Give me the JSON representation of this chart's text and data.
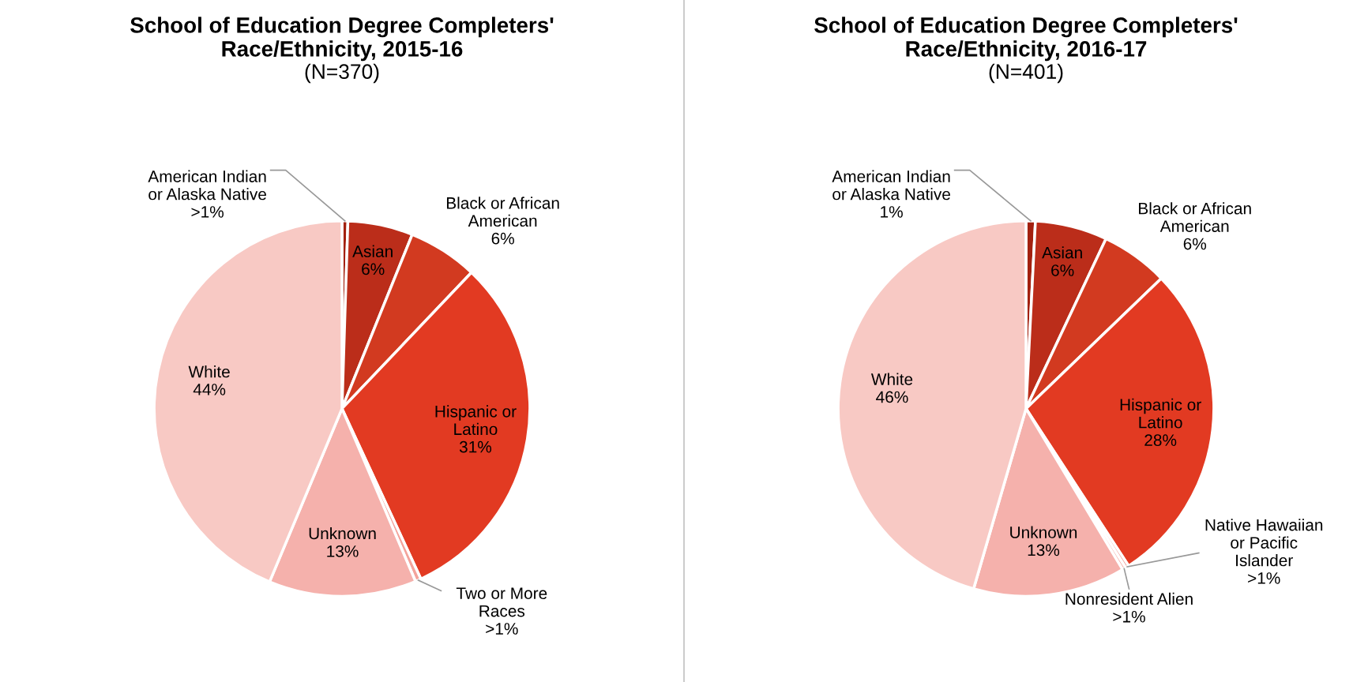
{
  "chart_data": [
    {
      "type": "pie",
      "title": "School of Education Degree Completers'\nRace/Ethnicity, 2015-16",
      "subtitle": "(N=370)",
      "categories": [
        "American Indian\nor Alaska Native",
        "Asian",
        "Black or African\nAmerican",
        "Hispanic or\nLatino",
        "Two or More\nRaces",
        "Unknown",
        "White"
      ],
      "values": [
        0.5,
        5.6,
        6.0,
        31,
        0.5,
        12.7,
        43.7
      ],
      "value_labels": [
        ">1%",
        "6%",
        "6%",
        "31%",
        ">1%",
        "13%",
        "44%"
      ],
      "colors": [
        "#a3200f",
        "#bb2d1a",
        "#d23a20",
        "#e23a22",
        "#f3a39b",
        "#f5b1ac",
        "#f8c9c4"
      ]
    },
    {
      "type": "pie",
      "title": "School of Education Degree Completers'\nRace/Ethnicity, 2016-17",
      "subtitle": "(N=401)",
      "categories": [
        "American Indian\nor Alaska Native",
        "Asian",
        "Black or African\nAmerican",
        "Hispanic or\nLatino",
        "Native Hawaiian\nor Pacific\nIslander",
        "Nonresident Alien",
        "Unknown",
        "White"
      ],
      "values": [
        0.8,
        6.2,
        5.8,
        28,
        0.3,
        0.3,
        13.1,
        45.5
      ],
      "value_labels": [
        "1%",
        "6%",
        "6%",
        "28%",
        ">1%",
        ">1%",
        "13%",
        "46%"
      ],
      "colors": [
        "#a3200f",
        "#bb2d1a",
        "#d23a20",
        "#e23a22",
        "#f09088",
        "#f3a39b",
        "#f5b1ac",
        "#f8c9c4"
      ]
    }
  ]
}
